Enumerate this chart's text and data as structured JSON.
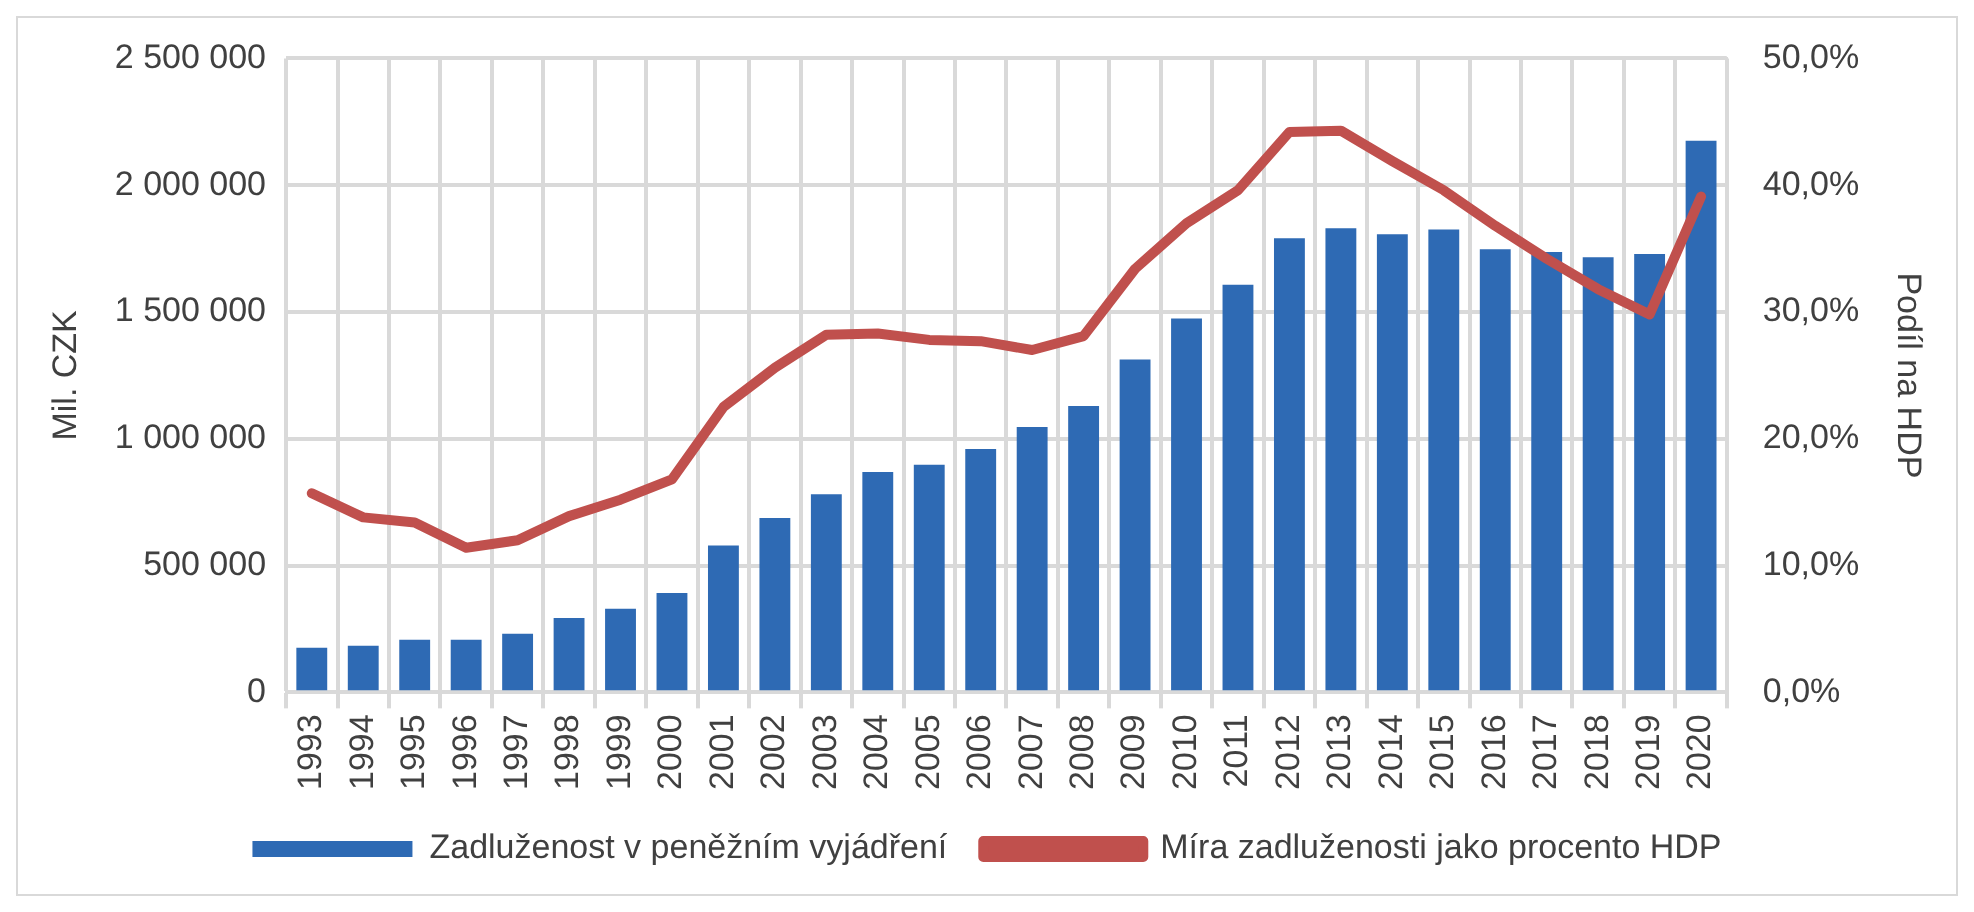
{
  "chart_data": {
    "type": "bar",
    "ylabel": "Mil. CZK",
    "y2label": "Podíl na HDP",
    "categories": [
      "1993",
      "1994",
      "1995",
      "1996",
      "1997",
      "1998",
      "1999",
      "2000",
      "2001",
      "2002",
      "2003",
      "2004",
      "2005",
      "2006",
      "2007",
      "2008",
      "2009",
      "2010",
      "2011",
      "2012",
      "2013",
      "2014",
      "2015",
      "2016",
      "2017",
      "2018",
      "2019",
      "2020"
    ],
    "series": [
      {
        "name": "Zadluženost v peněžním vyjádření",
        "color": "#2e6ab4",
        "values": [
          176000,
          184000,
          207000,
          207000,
          231000,
          293000,
          330000,
          392000,
          579000,
          688000,
          781000,
          869000,
          898000,
          960000,
          1046000,
          1129000,
          1313000,
          1474000,
          1607000,
          1791000,
          1830000,
          1807000,
          1825000,
          1747000,
          1737000,
          1716000,
          1729000,
          2175000
        ]
      },
      {
        "name": "Míra zadluženosti jako procento HDP",
        "type": "line",
        "axis": "y2",
        "color": "#c0504d",
        "values": [
          15.7,
          13.8,
          13.4,
          11.4,
          12.0,
          13.9,
          15.2,
          16.8,
          22.5,
          25.6,
          28.2,
          28.3,
          27.8,
          27.7,
          27.0,
          28.1,
          33.4,
          37.0,
          39.6,
          44.2,
          44.3,
          41.9,
          39.6,
          36.8,
          34.2,
          31.8,
          29.8,
          39.1
        ]
      }
    ],
    "ylim": [
      0,
      2500000
    ],
    "yticks": [
      {
        "value": 0,
        "label": "0"
      },
      {
        "value": 500000,
        "label": "500 000"
      },
      {
        "value": 1000000,
        "label": "1 000 000"
      },
      {
        "value": 1500000,
        "label": "1 500 000"
      },
      {
        "value": 2000000,
        "label": "2 000 000"
      },
      {
        "value": 2500000,
        "label": "2 500 000"
      }
    ],
    "y2lim": [
      0,
      50
    ],
    "y2ticks": [
      {
        "value": 0,
        "label": "0,0%"
      },
      {
        "value": 10,
        "label": "10,0%"
      },
      {
        "value": 20,
        "label": "20,0%"
      },
      {
        "value": 30,
        "label": "30,0%"
      },
      {
        "value": 40,
        "label": "40,0%"
      },
      {
        "value": 50,
        "label": "50,0%"
      }
    ],
    "grid": true,
    "legend": "bottom",
    "marker": "none"
  }
}
